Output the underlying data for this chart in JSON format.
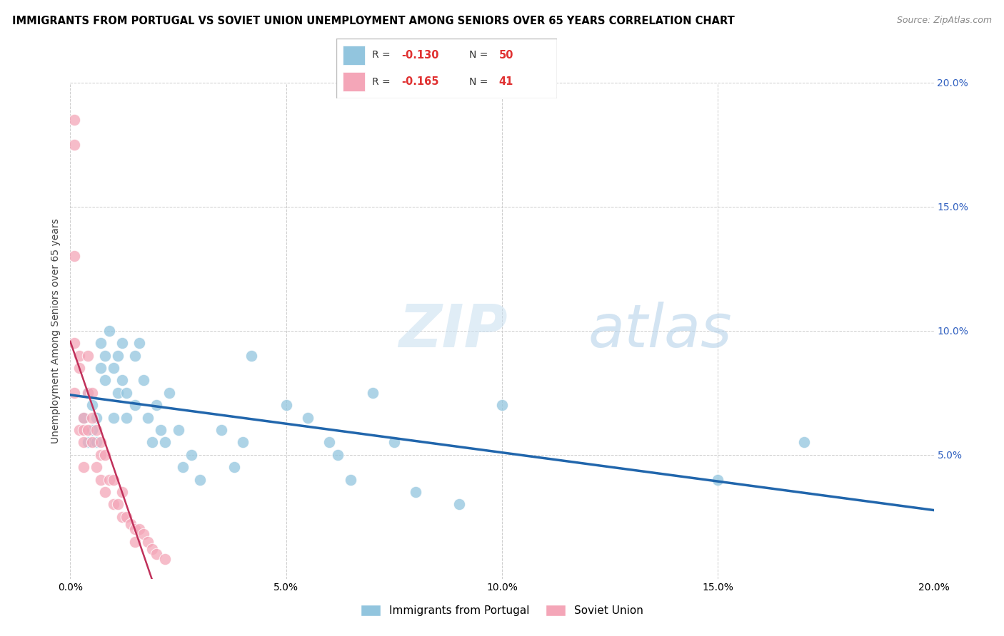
{
  "title": "IMMIGRANTS FROM PORTUGAL VS SOVIET UNION UNEMPLOYMENT AMONG SENIORS OVER 65 YEARS CORRELATION CHART",
  "source": "Source: ZipAtlas.com",
  "ylabel": "Unemployment Among Seniors over 65 years",
  "xlim": [
    0.0,
    0.2
  ],
  "ylim": [
    0.0,
    0.2
  ],
  "legend1_label": "Immigrants from Portugal",
  "legend2_label": "Soviet Union",
  "R1": -0.13,
  "N1": 50,
  "R2": -0.165,
  "N2": 41,
  "color_portugal": "#92c5de",
  "color_soviet": "#f4a6b8",
  "color_trendline_portugal": "#2166ac",
  "color_trendline_soviet": "#c0305a",
  "watermark_zip": "ZIP",
  "watermark_atlas": "atlas",
  "portugal_x": [
    0.003,
    0.004,
    0.004,
    0.005,
    0.005,
    0.006,
    0.006,
    0.007,
    0.007,
    0.008,
    0.008,
    0.009,
    0.01,
    0.01,
    0.011,
    0.011,
    0.012,
    0.012,
    0.013,
    0.013,
    0.015,
    0.015,
    0.016,
    0.017,
    0.018,
    0.019,
    0.02,
    0.021,
    0.022,
    0.023,
    0.025,
    0.026,
    0.028,
    0.03,
    0.035,
    0.038,
    0.04,
    0.042,
    0.05,
    0.055,
    0.06,
    0.062,
    0.065,
    0.07,
    0.075,
    0.08,
    0.09,
    0.1,
    0.15,
    0.17
  ],
  "portugal_y": [
    0.065,
    0.075,
    0.055,
    0.07,
    0.06,
    0.065,
    0.055,
    0.095,
    0.085,
    0.09,
    0.08,
    0.1,
    0.085,
    0.065,
    0.09,
    0.075,
    0.095,
    0.08,
    0.075,
    0.065,
    0.09,
    0.07,
    0.095,
    0.08,
    0.065,
    0.055,
    0.07,
    0.06,
    0.055,
    0.075,
    0.06,
    0.045,
    0.05,
    0.04,
    0.06,
    0.045,
    0.055,
    0.09,
    0.07,
    0.065,
    0.055,
    0.05,
    0.04,
    0.075,
    0.055,
    0.035,
    0.03,
    0.07,
    0.04,
    0.055
  ],
  "soviet_x": [
    0.001,
    0.001,
    0.001,
    0.001,
    0.001,
    0.002,
    0.002,
    0.002,
    0.003,
    0.003,
    0.003,
    0.003,
    0.004,
    0.004,
    0.004,
    0.005,
    0.005,
    0.005,
    0.006,
    0.006,
    0.007,
    0.007,
    0.007,
    0.008,
    0.008,
    0.009,
    0.01,
    0.01,
    0.011,
    0.012,
    0.012,
    0.013,
    0.014,
    0.015,
    0.015,
    0.016,
    0.017,
    0.018,
    0.019,
    0.02,
    0.022
  ],
  "soviet_y": [
    0.185,
    0.175,
    0.13,
    0.095,
    0.075,
    0.09,
    0.085,
    0.06,
    0.065,
    0.06,
    0.055,
    0.045,
    0.09,
    0.075,
    0.06,
    0.075,
    0.065,
    0.055,
    0.06,
    0.045,
    0.055,
    0.05,
    0.04,
    0.05,
    0.035,
    0.04,
    0.04,
    0.03,
    0.03,
    0.035,
    0.025,
    0.025,
    0.022,
    0.02,
    0.015,
    0.02,
    0.018,
    0.015,
    0.012,
    0.01,
    0.008
  ]
}
